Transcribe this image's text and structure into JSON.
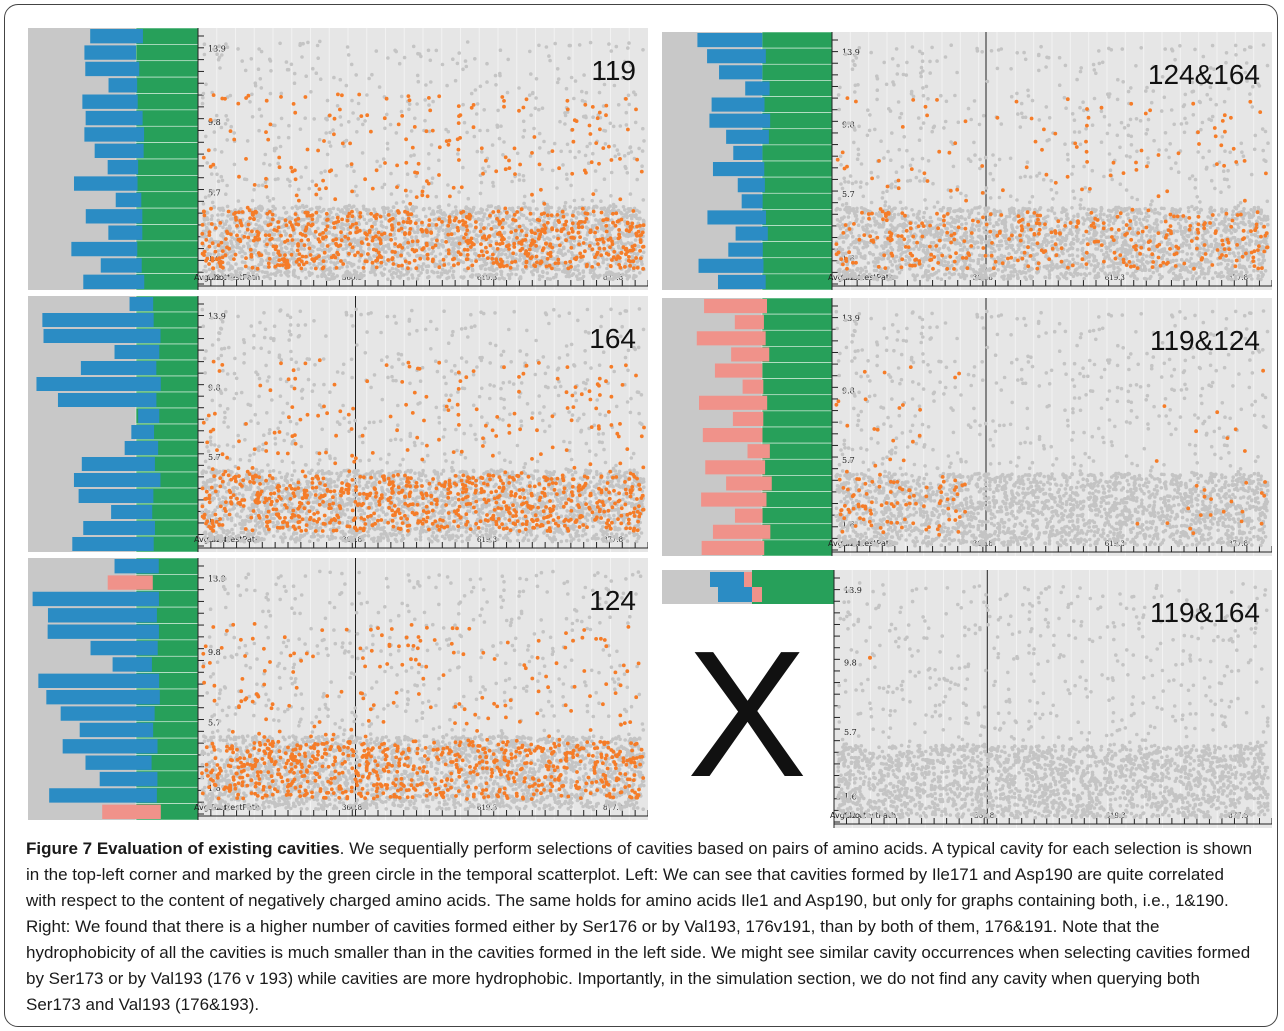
{
  "figure": {
    "panels": [
      {
        "id": "119",
        "label": "119",
        "bar_colors": [
          "blue"
        ],
        "yticks": [
          "13.9",
          "9.8",
          "5.7",
          "1.6"
        ],
        "xlabel": "AvgShortestPath",
        "xticks": [
          "102.4",
          "360.8",
          "619.3",
          "877.8"
        ],
        "selected": true,
        "density": "high",
        "vline": false
      },
      {
        "id": "124&164",
        "label": "124&164",
        "bar_colors": [
          "blue"
        ],
        "yticks": [
          "13.9",
          "9.8",
          "5.7",
          "1.6"
        ],
        "xlabel": "AvgShortestPath",
        "xticks": [
          "102.4",
          "360.8",
          "619.3",
          "877.8"
        ],
        "selected": true,
        "density": "medium",
        "vline": true
      },
      {
        "id": "164",
        "label": "164",
        "bar_colors": [
          "blue"
        ],
        "yticks": [
          "13.9",
          "9.8",
          "5.7",
          "1.6"
        ],
        "xlabel": "AvgShortestPath",
        "xticks": [
          "102.4",
          "360.8",
          "619.3",
          "877.8"
        ],
        "selected": true,
        "density": "high",
        "vline": true
      },
      {
        "id": "119&124",
        "label": "119&124",
        "bar_colors": [
          "pink"
        ],
        "yticks": [
          "13.9",
          "9.8",
          "5.7",
          "1.6"
        ],
        "xlabel": "AvgShortestPath",
        "xticks": [
          "102.4",
          "360.8",
          "619.3",
          "877.8"
        ],
        "selected": true,
        "density": "low",
        "vline": true
      },
      {
        "id": "124",
        "label": "124",
        "bar_colors": [
          "pink",
          "blue"
        ],
        "yticks": [
          "13.9",
          "9.8",
          "5.7",
          "1.6"
        ],
        "xlabel": "AvgShortestPath",
        "xticks": [
          "102.4",
          "360.8",
          "619.3",
          "877.8"
        ],
        "selected": true,
        "density": "high",
        "vline": true
      },
      {
        "id": "119&164",
        "label": "119&164",
        "bar_colors": [
          "blue",
          "pink"
        ],
        "yticks": [
          "13.9",
          "9.8",
          "5.7",
          "1.6"
        ],
        "xlabel": "AvgShortestPath",
        "xticks": [
          "102.4",
          "360.8",
          "619.3",
          "877.8"
        ],
        "selected": false,
        "density": "none",
        "vline": true
      }
    ],
    "empty_marker": "X",
    "colors": {
      "gray_bar": "#c8c8c8",
      "blue": "#2b8cc4",
      "green": "#27a05a",
      "pink": "#f0928a",
      "plot_bg": "#e6e6e6",
      "gray_dot": "#c4c4c4",
      "orange_dot": "#f57c28"
    }
  },
  "caption": {
    "title": "Figure 7 Evaluation of existing cavities",
    "body": ". We sequentially perform selections of cavities based on pairs of amino acids. A typical cavity for each selection is shown in the top-left corner and marked by the green circle in the temporal scatterplot. Left: We can see that cavities formed by Ile171 and Asp190 are quite correlated with respect to the content of negatively charged amino acids. The same holds for amino acids Ile1 and Asp190, but only for graphs containing both, i.e., 1&190. Right: We found that there is a higher number of cavities formed either by Ser176 or by Val193, 176v191, than by both of them, 176&191. Note that the hydrophobicity of all the cavities is much smaller than in the cavities formed in the left side. We might see similar cavity occurrences when selecting cavities formed by Ser173 or by Val193 (176 v 193) while cavities are more hydrophobic. Importantly, in the simulation section, we do not find any cavity when querying both Ser173 and Val193 (176&193)."
  }
}
